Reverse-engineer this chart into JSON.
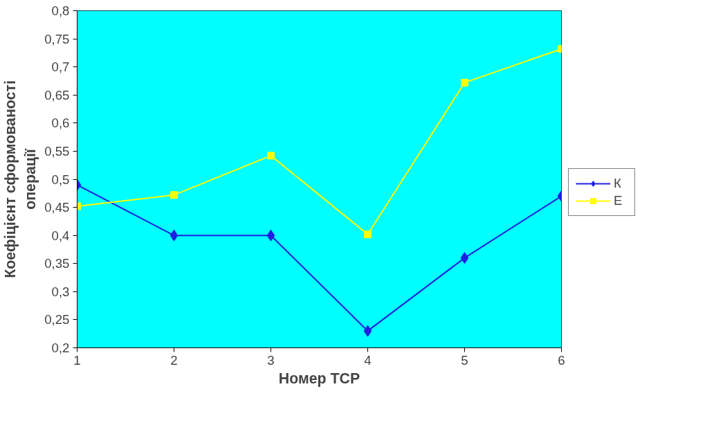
{
  "chart_data": {
    "type": "line",
    "xlabel": "Номер ТСР",
    "ylabel": "Коефіцієнт сформованості\nоперації",
    "x": [
      1,
      2,
      3,
      4,
      5,
      6
    ],
    "series": [
      {
        "name": "К",
        "color": "#1f1fe0",
        "marker": "diamond",
        "values": [
          0.49,
          0.4,
          0.4,
          0.23,
          0.36,
          0.47
        ]
      },
      {
        "name": "Е",
        "color": "#ffff00",
        "marker": "square",
        "values": [
          0.452,
          0.472,
          0.542,
          0.402,
          0.672,
          0.732
        ]
      }
    ],
    "xlim": [
      1,
      6
    ],
    "xticks": [
      1,
      2,
      3,
      4,
      5,
      6
    ],
    "ylim": [
      0.2,
      0.8
    ],
    "yticks": [
      {
        "value": 0.2,
        "label": "0,2"
      },
      {
        "value": 0.25,
        "label": "0,25"
      },
      {
        "value": 0.3,
        "label": "0,3"
      },
      {
        "value": 0.35,
        "label": "0,35"
      },
      {
        "value": 0.4,
        "label": "0,4"
      },
      {
        "value": 0.45,
        "label": "0,45"
      },
      {
        "value": 0.5,
        "label": "0,5"
      },
      {
        "value": 0.55,
        "label": "0,55"
      },
      {
        "value": 0.6,
        "label": "0,6"
      },
      {
        "value": 0.65,
        "label": "0,65"
      },
      {
        "value": 0.7,
        "label": "0,7"
      },
      {
        "value": 0.75,
        "label": "0,75"
      },
      {
        "value": 0.8,
        "label": "0,8"
      }
    ],
    "grid": false,
    "legend": "right",
    "line_style": "solid"
  }
}
